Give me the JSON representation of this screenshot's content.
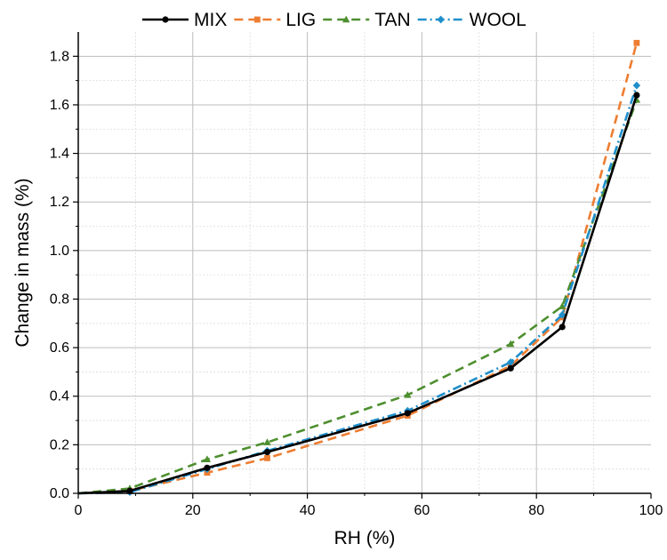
{
  "chart_data": {
    "type": "line",
    "xlabel": "RH (%)",
    "ylabel": "Change in mass (%)",
    "xlim": [
      0,
      100
    ],
    "ylim": [
      0,
      1.9
    ],
    "x_ticks": [
      "0",
      "20",
      "40",
      "60",
      "80",
      "100"
    ],
    "y_ticks": [
      "0.0",
      "0.2",
      "0.4",
      "0.6",
      "0.8",
      "1.0",
      "1.2",
      "1.4",
      "1.6",
      "1.8"
    ],
    "grid": true,
    "legend_position": "top",
    "x": [
      0,
      9,
      22.5,
      33,
      57.5,
      75.5,
      84.5,
      97.5
    ],
    "series": [
      {
        "name": "MIX",
        "color": "#000000",
        "dash": "solid",
        "marker": "circle",
        "values": [
          0,
          0.01,
          0.105,
          0.17,
          0.33,
          0.515,
          0.685,
          1.64
        ]
      },
      {
        "name": "LIG",
        "color": "#ED7D31",
        "dash": "dash",
        "marker": "square",
        "values": [
          0,
          0.01,
          0.085,
          0.145,
          0.32,
          0.525,
          0.725,
          1.855
        ]
      },
      {
        "name": "TAN",
        "color": "#4E8F2F",
        "dash": "dash",
        "marker": "triangle",
        "values": [
          0,
          0.02,
          0.14,
          0.21,
          0.405,
          0.615,
          0.77,
          1.62
        ]
      },
      {
        "name": "WOOL",
        "color": "#1F8FCB",
        "dash": "dashdot",
        "marker": "diamond",
        "values": [
          0,
          0.005,
          0.1,
          0.175,
          0.34,
          0.54,
          0.735,
          1.68
        ]
      }
    ]
  }
}
